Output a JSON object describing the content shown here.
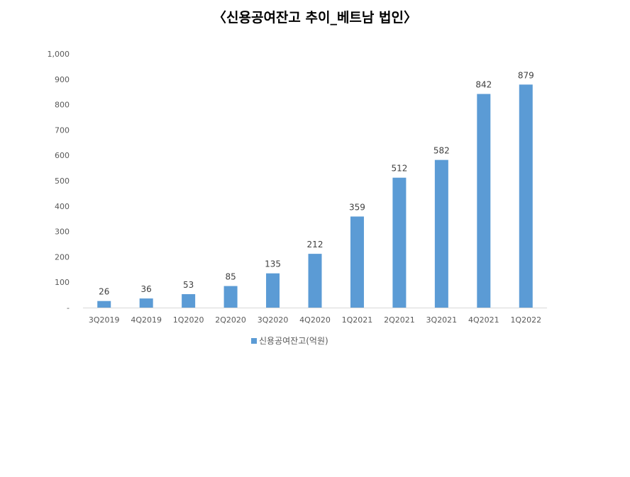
{
  "chart_data": {
    "type": "bar",
    "title": "〈신용공여잔고 추이_베트남 법인〉",
    "categories": [
      "3Q2019",
      "4Q2019",
      "1Q2020",
      "2Q2020",
      "3Q2020",
      "4Q2020",
      "1Q2021",
      "2Q2021",
      "3Q2021",
      "4Q2021",
      "1Q2022"
    ],
    "series": [
      {
        "name": "신용공여잔고(억원)",
        "values": [
          26,
          36,
          53,
          85,
          135,
          212,
          359,
          512,
          582,
          842,
          879
        ]
      }
    ],
    "ylim": [
      0,
      1000
    ],
    "yticks": [
      "-",
      "100",
      "200",
      "300",
      "400",
      "500",
      "600",
      "700",
      "800",
      "900",
      "1,000"
    ],
    "grid": false,
    "legend": "bottom",
    "color": "#5b9bd5"
  }
}
